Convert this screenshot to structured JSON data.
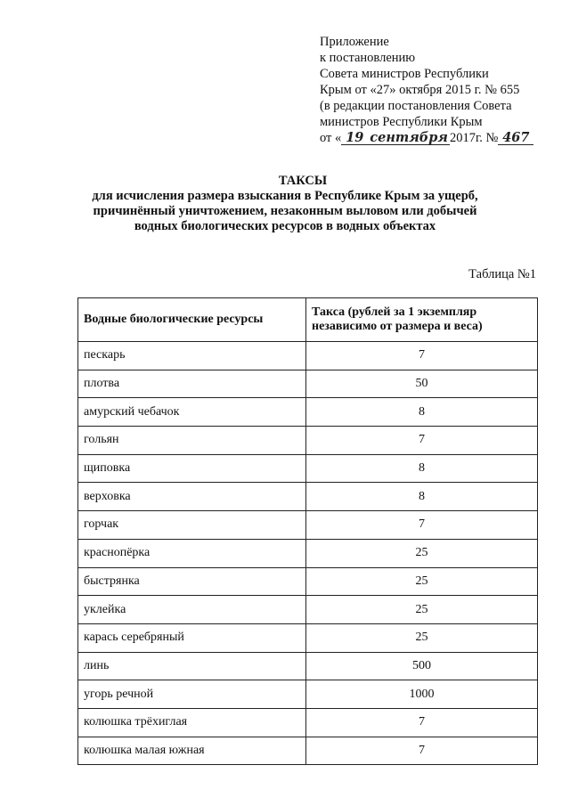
{
  "appendix": {
    "lines": [
      "Приложение",
      "к постановлению",
      "Совета министров Республики",
      "Крым от «27» октября 2015 г. № 655",
      "(в редакции постановления Совета",
      "министров Республики Крым"
    ],
    "last_prefix": "от «",
    "hand_day": "19",
    "hand_month": "сентября",
    "year_text": "2017г. №",
    "hand_number": "467"
  },
  "title": {
    "main": "ТАКСЫ",
    "lines": [
      "для исчисления размера взыскания в Республике Крым за ущерб,",
      "причинённый уничтожением, незаконным выловом или добычей",
      "водных биологических ресурсов в водных объектах"
    ]
  },
  "table_label": "Таблица №1",
  "table": {
    "headers": [
      "Водные биологические ресурсы",
      "Такса (рублей за 1 экземпляр независимо от размера и веса)"
    ],
    "rows": [
      [
        "пескарь",
        "7"
      ],
      [
        "плотва",
        "50"
      ],
      [
        "амурский чебачок",
        "8"
      ],
      [
        "гольян",
        "7"
      ],
      [
        "щиповка",
        "8"
      ],
      [
        "верховка",
        "8"
      ],
      [
        "горчак",
        "7"
      ],
      [
        "краснопёрка",
        "25"
      ],
      [
        "быстрянка",
        "25"
      ],
      [
        "уклейка",
        "25"
      ],
      [
        "карась серебряный",
        "25"
      ],
      [
        "линь",
        "500"
      ],
      [
        "угорь речной",
        "1000"
      ],
      [
        "колюшка трёхиглая",
        "7"
      ],
      [
        "колюшка малая южная",
        "7"
      ]
    ]
  }
}
